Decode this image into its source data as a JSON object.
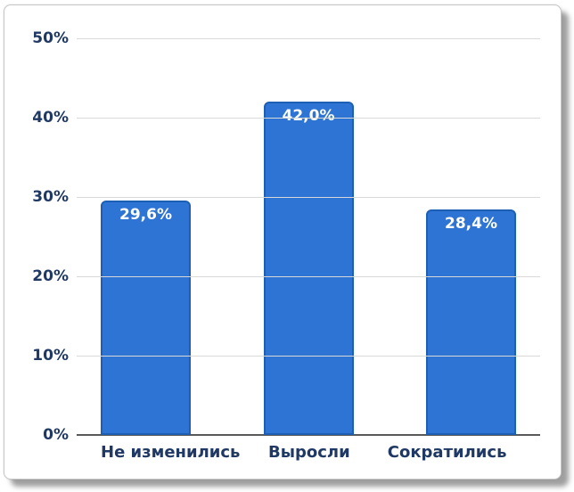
{
  "chart_data": {
    "type": "bar",
    "title": "",
    "xlabel": "",
    "ylabel": "",
    "categories": [
      "Не изменились",
      "Выросли",
      "Сократились"
    ],
    "values": [
      29.6,
      42.0,
      28.4
    ],
    "value_labels": [
      "29,6%",
      "42,0%",
      "28,4%"
    ],
    "y_ticks": [
      0,
      10,
      20,
      30,
      40,
      50
    ],
    "y_tick_labels": [
      "0%",
      "10%",
      "20%",
      "30%",
      "40%",
      "50%"
    ],
    "ylim": [
      0,
      50
    ],
    "grid": true,
    "legend_position": "none",
    "colors": {
      "bar_fill": "#2d74d4",
      "bar_border": "#1d5fb4",
      "bar_label_text": "#ffffff",
      "axis_text": "#1f3864",
      "gridline": "#d9d9d9",
      "axis_line": "#595959",
      "card_background": "#ffffff",
      "card_border": "#c6c6c6"
    }
  }
}
